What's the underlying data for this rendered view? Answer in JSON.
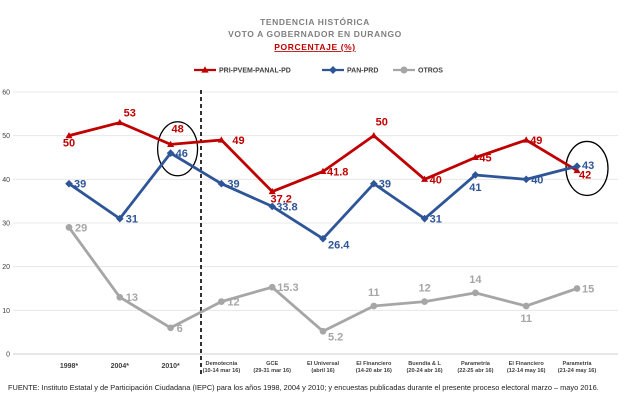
{
  "chart_data": {
    "type": "line",
    "title_line1": "TENDENCIA  HISTÓRICA",
    "title_line2": "VOTO  A  GOBERNADOR  EN  DURANGO",
    "subtitle": "PORCENTAJE  (%)",
    "ylim": [
      0,
      60
    ],
    "yticks": [
      "0",
      "10",
      "20",
      "30",
      "40",
      "50",
      "60"
    ],
    "categories": [
      {
        "line1": "1998*",
        "line2": ""
      },
      {
        "line1": "2004*",
        "line2": ""
      },
      {
        "line1": "2010*",
        "line2": ""
      },
      {
        "line1": "Demotecnia",
        "line2": "(10-14 mar 16)"
      },
      {
        "line1": "GCE",
        "line2": "(29-31 mar 16)"
      },
      {
        "line1": "El Universal",
        "line2": "(abril 16)"
      },
      {
        "line1": "El Financiero",
        "line2": "(14-20 abr 16)"
      },
      {
        "line1": "Buendía & L",
        "line2": "(20-24 abr 16)"
      },
      {
        "line1": "Parametría",
        "line2": "(22-25 abr 16)"
      },
      {
        "line1": "El Financiero",
        "line2": "(12-14 may 16)"
      },
      {
        "line1": "Parametría",
        "line2": "(21-24 may 16)"
      }
    ],
    "series": [
      {
        "name": "PRI-PVEM-PANAL-PD",
        "color": "#c00000",
        "marker": "triangle",
        "values": [
          50,
          53,
          48,
          49,
          37.2,
          41.8,
          50,
          40,
          45,
          49,
          42
        ],
        "labels": [
          "50",
          "53",
          "48",
          "49",
          "37.2",
          "41.8",
          "50",
          "40",
          "45",
          "49",
          "42"
        ]
      },
      {
        "name": "PAN-PRD",
        "color": "#2e5597",
        "marker": "diamond",
        "values": [
          39,
          31,
          46,
          39,
          33.8,
          26.4,
          39,
          31,
          41,
          40,
          43
        ],
        "labels": [
          "39",
          "31",
          "46",
          "39",
          "33.8",
          "26.4",
          "39",
          "31",
          "41",
          "40",
          "43"
        ]
      },
      {
        "name": "OTROS",
        "color": "#a6a6a6",
        "marker": "circle",
        "values": [
          29,
          13,
          6,
          12,
          15.3,
          5.2,
          11,
          12,
          14,
          11,
          15
        ],
        "labels": [
          "29",
          "13",
          "6",
          "12",
          "15.3",
          "5.2",
          "11",
          "12",
          "14",
          "11",
          "15"
        ]
      }
    ],
    "annotations": [
      "circle around 2010* values",
      "circle around Parametría (21-24 may 16) values",
      "dashed vertical line after 2010*"
    ]
  },
  "footnote": "FUENTE: Instituto Estatal y de Participación Ciudadana (IEPC) para los años 1998, 2004 y 2010; y encuestas publicadas durante el presente proceso electoral marzo – mayo 2016."
}
